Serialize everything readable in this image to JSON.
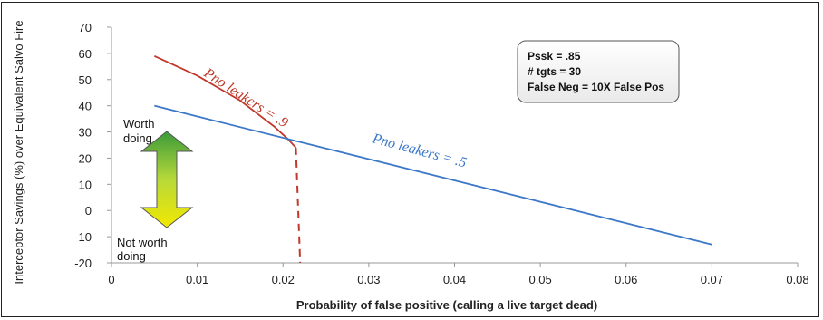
{
  "chart_data": {
    "type": "line",
    "xlabel": "Probability of false positive  (calling a live target dead)",
    "ylabel": "Interceptor Savings (%) over Equivalent Salvo Fire",
    "xlim": [
      0,
      0.08
    ],
    "ylim": [
      -20,
      70
    ],
    "x_ticks": [
      "0",
      "0.01",
      "0.02",
      "0.03",
      "0.04",
      "0.05",
      "0.06",
      "0.07",
      "0.08"
    ],
    "y_ticks": [
      "70",
      "60",
      "50",
      "40",
      "30",
      "20",
      "10",
      "0",
      "-10",
      "-20"
    ],
    "grid": false,
    "series": [
      {
        "name": "Pno leakers = .9",
        "color": "#c0392b",
        "points": [
          [
            0.005,
            59
          ],
          [
            0.01,
            51.5
          ],
          [
            0.015,
            42
          ],
          [
            0.019,
            32
          ],
          [
            0.0205,
            27.5
          ],
          [
            0.0215,
            24
          ]
        ],
        "dashed_points": [
          [
            0.0215,
            24
          ],
          [
            0.022,
            -20
          ]
        ]
      },
      {
        "name": "Pno leakers = .5",
        "color": "#3c78c8",
        "points": [
          [
            0.005,
            40
          ],
          [
            0.07,
            -13
          ]
        ]
      }
    ],
    "annotations": {
      "info_box": [
        "Pssk = .85",
        "# tgts = 30",
        "False Neg = 10X False Pos"
      ],
      "worth_label": [
        "Worth",
        "doing"
      ],
      "not_worth_label": [
        "Not worth",
        "doing"
      ]
    }
  }
}
